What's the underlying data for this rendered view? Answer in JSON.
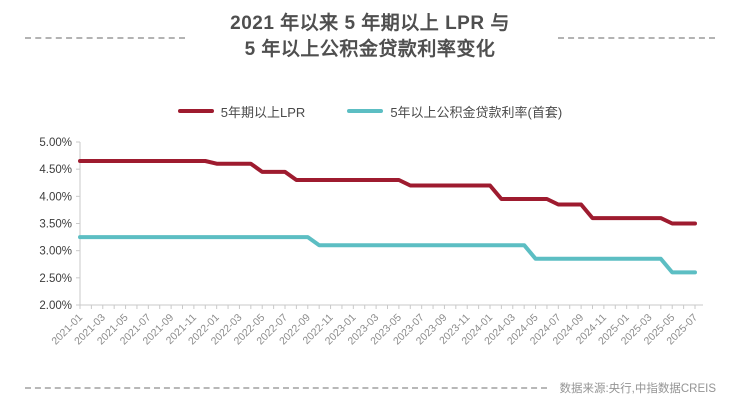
{
  "header": {
    "title_line1": "2021 年以来 5 年期以上 LPR 与",
    "title_line2": "5 年以上公积金贷款利率变化",
    "title_color": "#4f4f4f"
  },
  "legend": {
    "items": [
      {
        "id": "lpr",
        "label": "5年期以上LPR",
        "color": "#9e1b2f"
      },
      {
        "id": "gjj-first-home",
        "label": "5年以上公积金贷款利率(首套)",
        "color": "#5cbec3"
      }
    ]
  },
  "footer": {
    "source": "数据来源:央行,中指数据CREIS"
  },
  "colors": {
    "lpr_line": "#9e1b2f",
    "gjj_line": "#5cbec3",
    "axis": "#c9c9c9",
    "x_label": "#8c8c8c",
    "y_label": "#3c3c3c"
  },
  "chart_data": {
    "type": "line",
    "subtype": "step-monthly",
    "title": "2021 年以来 5 年期以上 LPR 与 5 年以上公积金贷款利率变化",
    "xlabel": "",
    "ylabel": "",
    "ylim": [
      2.0,
      5.0
    ],
    "grid": false,
    "legend_position": "top",
    "y_ticks": [
      5.0,
      4.5,
      4.0,
      3.5,
      3.0,
      2.5,
      2.0
    ],
    "y_tick_labels": [
      "5.00%",
      "4.50%",
      "4.00%",
      "3.50%",
      "3.00%",
      "2.50%",
      "2.00%"
    ],
    "x_tick_every": 2,
    "x_tick_labels": [
      "2021-01",
      "2021-03",
      "2021-05",
      "2021-07",
      "2021-09",
      "2021-11",
      "2022-01",
      "2022-03",
      "2022-05",
      "2022-07",
      "2022-09",
      "2022-11",
      "2023-01",
      "2023-03",
      "2023-05",
      "2023-07",
      "2023-09",
      "2023-11",
      "2024-01",
      "2024-03",
      "2024-05",
      "2024-07",
      "2024-09",
      "2024-11",
      "2025-01",
      "2025-03",
      "2025-05",
      "2025-07"
    ],
    "x": [
      "2021-01",
      "2021-02",
      "2021-03",
      "2021-04",
      "2021-05",
      "2021-06",
      "2021-07",
      "2021-08",
      "2021-09",
      "2021-10",
      "2021-11",
      "2021-12",
      "2022-01",
      "2022-02",
      "2022-03",
      "2022-04",
      "2022-05",
      "2022-06",
      "2022-07",
      "2022-08",
      "2022-09",
      "2022-10",
      "2022-11",
      "2022-12",
      "2023-01",
      "2023-02",
      "2023-03",
      "2023-04",
      "2023-05",
      "2023-06",
      "2023-07",
      "2023-08",
      "2023-09",
      "2023-10",
      "2023-11",
      "2023-12",
      "2024-01",
      "2024-02",
      "2024-03",
      "2024-04",
      "2024-05",
      "2024-06",
      "2024-07",
      "2024-08",
      "2024-09",
      "2024-10",
      "2024-11",
      "2024-12",
      "2025-01",
      "2025-02",
      "2025-03",
      "2025-04",
      "2025-05",
      "2025-06",
      "2025-07"
    ],
    "series": [
      {
        "id": "lpr",
        "name": "5年期以上LPR",
        "color": "#9e1b2f",
        "values": [
          4.65,
          4.65,
          4.65,
          4.65,
          4.65,
          4.65,
          4.65,
          4.65,
          4.65,
          4.65,
          4.65,
          4.65,
          4.6,
          4.6,
          4.6,
          4.6,
          4.45,
          4.45,
          4.45,
          4.3,
          4.3,
          4.3,
          4.3,
          4.3,
          4.3,
          4.3,
          4.3,
          4.3,
          4.3,
          4.2,
          4.2,
          4.2,
          4.2,
          4.2,
          4.2,
          4.2,
          4.2,
          3.95,
          3.95,
          3.95,
          3.95,
          3.95,
          3.85,
          3.85,
          3.85,
          3.6,
          3.6,
          3.6,
          3.6,
          3.6,
          3.6,
          3.6,
          3.5,
          3.5,
          3.5
        ]
      },
      {
        "id": "gjj-first-home",
        "name": "5年以上公积金贷款利率(首套)",
        "color": "#5cbec3",
        "values": [
          3.25,
          3.25,
          3.25,
          3.25,
          3.25,
          3.25,
          3.25,
          3.25,
          3.25,
          3.25,
          3.25,
          3.25,
          3.25,
          3.25,
          3.25,
          3.25,
          3.25,
          3.25,
          3.25,
          3.25,
          3.25,
          3.1,
          3.1,
          3.1,
          3.1,
          3.1,
          3.1,
          3.1,
          3.1,
          3.1,
          3.1,
          3.1,
          3.1,
          3.1,
          3.1,
          3.1,
          3.1,
          3.1,
          3.1,
          3.1,
          2.85,
          2.85,
          2.85,
          2.85,
          2.85,
          2.85,
          2.85,
          2.85,
          2.85,
          2.85,
          2.85,
          2.85,
          2.6,
          2.6,
          2.6
        ]
      }
    ]
  }
}
